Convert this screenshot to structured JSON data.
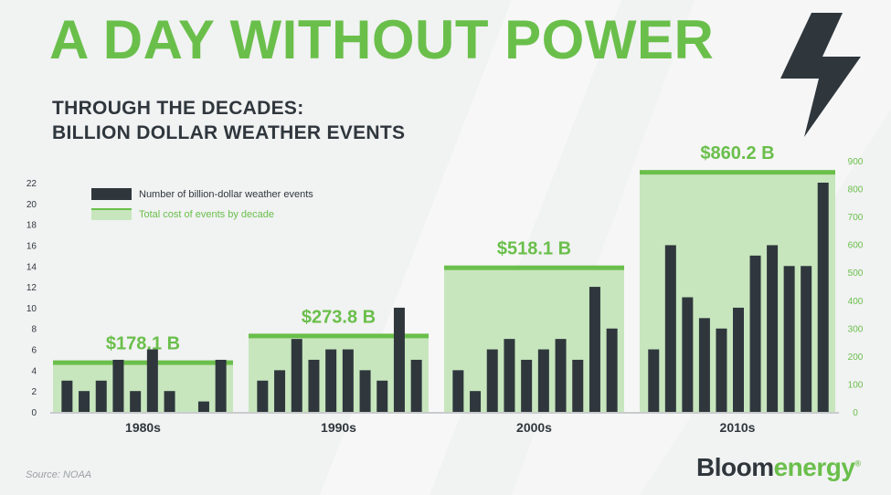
{
  "title": "A DAY WITHOUT POWER",
  "subtitle_line1": "THROUGH THE DECADES:",
  "subtitle_line2": "BILLION DOLLAR WEATHER EVENTS",
  "source": "Source: NOAA",
  "logo": {
    "part1": "Bloom",
    "part2": "energy",
    "mark": "®"
  },
  "icons": {
    "bolt": "lightning-bolt-icon"
  },
  "colors": {
    "green": "#6abf4b",
    "light_green": "#c7e6bd",
    "dark": "#2f373d"
  },
  "chart_data": {
    "type": "bar",
    "categories": [
      "1980s",
      "1990s",
      "2000s",
      "2010s"
    ],
    "series": [
      {
        "name": "Number of billion-dollar weather events",
        "axis": "left",
        "values": [
          [
            3,
            2,
            3,
            5,
            2,
            6,
            2,
            0,
            1,
            5
          ],
          [
            3,
            4,
            7,
            5,
            6,
            6,
            4,
            3,
            10,
            5
          ],
          [
            4,
            2,
            6,
            7,
            5,
            6,
            7,
            5,
            12,
            8
          ],
          [
            6,
            16,
            11,
            9,
            8,
            10,
            15,
            16,
            14,
            14,
            22
          ]
        ]
      },
      {
        "name": "Total cost of events by decade",
        "axis": "right",
        "values": [
          178.1,
          273.8,
          518.1,
          860.2
        ],
        "labels": [
          "$178.1 B",
          "$273.8 B",
          "$518.1 B",
          "$860.2 B"
        ]
      }
    ],
    "left_axis": {
      "ylim": [
        0,
        24
      ],
      "ticks": [
        "0",
        "2",
        "4",
        "6",
        "8",
        "10",
        "12",
        "14",
        "16",
        "18",
        "20",
        "22"
      ]
    },
    "right_axis": {
      "ylim": [
        0,
        900
      ],
      "ticks": [
        "0",
        "100",
        "200",
        "300",
        "400",
        "500",
        "600",
        "700",
        "800",
        "900"
      ]
    },
    "legend": {
      "position": "top-left"
    },
    "grid": false
  }
}
